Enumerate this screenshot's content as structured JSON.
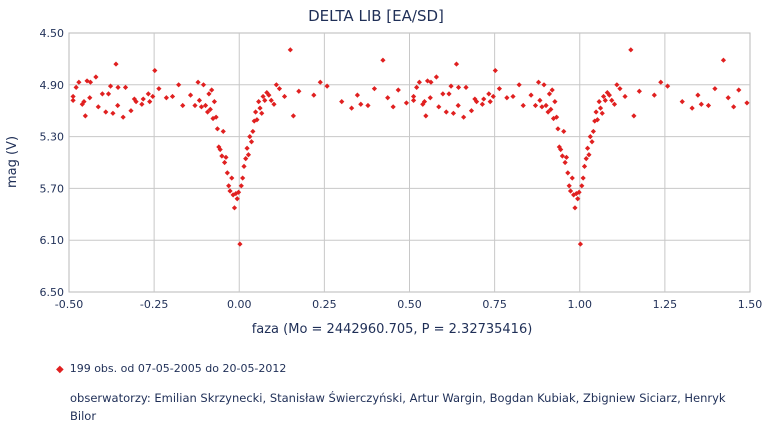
{
  "chart_data": {
    "type": "scatter",
    "title": "DELTA LIB [EA/SD]",
    "xlabel": "faza (Mo = 2442960.705, P = 2.32735416)",
    "ylabel": "mag (V)",
    "xlim": [
      -0.5,
      1.5
    ],
    "ylim": [
      4.5,
      6.5
    ],
    "y_inverted": true,
    "grid": true,
    "x_ticks": [
      "-0.50",
      "-0.25",
      "0.00",
      "0.25",
      "0.50",
      "0.75",
      "1.00",
      "1.25",
      "1.50"
    ],
    "y_ticks": [
      "4.50",
      "4.90",
      "5.30",
      "5.70",
      "6.10",
      "6.50"
    ],
    "marker_color": "#e02020",
    "series": [
      {
        "points": [
          [
            -0.488,
            4.99
          ],
          [
            -0.479,
            4.92
          ],
          [
            -0.461,
            5.05
          ],
          [
            -0.452,
            5.14
          ],
          [
            -0.447,
            4.87
          ],
          [
            -0.437,
            4.88
          ],
          [
            -0.414,
            5.07
          ],
          [
            -0.402,
            4.97
          ],
          [
            -0.384,
            4.97
          ],
          [
            -0.371,
            5.12
          ],
          [
            -0.362,
            4.74
          ],
          [
            -0.356,
            4.92
          ],
          [
            -0.341,
            5.15
          ],
          [
            -0.318,
            5.1
          ],
          [
            -0.303,
            5.03
          ],
          [
            -0.282,
            5.01
          ],
          [
            -0.267,
            4.97
          ],
          [
            -0.254,
            4.99
          ],
          [
            -0.236,
            4.93
          ],
          [
            -0.214,
            5.0
          ],
          [
            -0.196,
            4.99
          ],
          [
            -0.178,
            4.9
          ],
          [
            -0.166,
            5.06
          ],
          [
            -0.143,
            4.98
          ],
          [
            -0.13,
            5.06
          ],
          [
            -0.121,
            4.88
          ],
          [
            -0.117,
            5.02
          ],
          [
            -0.111,
            5.07
          ],
          [
            -0.105,
            4.9
          ],
          [
            -0.099,
            5.06
          ],
          [
            -0.093,
            5.11
          ],
          [
            -0.089,
            4.97
          ],
          [
            -0.085,
            5.09
          ],
          [
            -0.081,
            4.94
          ],
          [
            -0.077,
            5.16
          ],
          [
            -0.073,
            5.03
          ],
          [
            -0.068,
            5.15
          ],
          [
            -0.064,
            5.24
          ],
          [
            -0.06,
            5.38
          ],
          [
            -0.056,
            5.4
          ],
          [
            -0.051,
            5.45
          ],
          [
            -0.047,
            5.26
          ],
          [
            -0.043,
            5.5
          ],
          [
            -0.039,
            5.46
          ],
          [
            -0.035,
            5.58
          ],
          [
            -0.031,
            5.68
          ],
          [
            -0.027,
            5.72
          ],
          [
            -0.022,
            5.62
          ],
          [
            -0.018,
            5.75
          ],
          [
            -0.014,
            5.85
          ],
          [
            -0.01,
            5.74
          ],
          [
            -0.006,
            5.78
          ],
          [
            -0.002,
            5.73
          ],
          [
            0.002,
            6.13
          ],
          [
            0.006,
            5.68
          ],
          [
            0.01,
            5.62
          ],
          [
            0.014,
            5.53
          ],
          [
            0.019,
            5.47
          ],
          [
            0.023,
            5.39
          ],
          [
            0.027,
            5.44
          ],
          [
            0.031,
            5.3
          ],
          [
            0.036,
            5.34
          ],
          [
            0.04,
            5.26
          ],
          [
            0.044,
            5.18
          ],
          [
            0.048,
            5.11
          ],
          [
            0.052,
            5.17
          ],
          [
            0.057,
            5.03
          ],
          [
            0.061,
            5.08
          ],
          [
            0.066,
            5.12
          ],
          [
            0.07,
            4.99
          ],
          [
            0.075,
            5.02
          ],
          [
            0.081,
            4.96
          ],
          [
            0.087,
            4.98
          ],
          [
            0.094,
            5.02
          ],
          [
            0.102,
            5.05
          ],
          [
            0.109,
            4.9
          ],
          [
            0.118,
            4.93
          ],
          [
            0.133,
            4.99
          ],
          [
            0.15,
            4.63
          ],
          [
            0.159,
            5.14
          ],
          [
            0.175,
            4.95
          ],
          [
            0.219,
            4.98
          ],
          [
            0.238,
            4.88
          ],
          [
            0.258,
            4.91
          ],
          [
            0.301,
            5.03
          ],
          [
            0.33,
            5.08
          ],
          [
            0.347,
            4.98
          ],
          [
            0.357,
            5.05
          ],
          [
            0.378,
            5.06
          ],
          [
            0.397,
            4.93
          ],
          [
            0.422,
            4.71
          ],
          [
            0.436,
            5.0
          ],
          [
            0.452,
            5.07
          ],
          [
            0.467,
            4.94
          ],
          [
            0.491,
            5.04
          ],
          [
            0.512,
            5.02
          ],
          [
            0.529,
            4.88
          ],
          [
            0.544,
            5.03
          ],
          [
            0.561,
            5.0
          ],
          [
            0.579,
            4.84
          ],
          [
            0.608,
            5.11
          ],
          [
            0.622,
            4.91
          ],
          [
            0.643,
            5.06
          ],
          [
            0.666,
            4.92
          ],
          [
            0.692,
            5.01
          ],
          [
            0.714,
            5.05
          ],
          [
            0.737,
            5.03
          ],
          [
            0.752,
            4.79
          ]
        ]
      }
    ]
  },
  "legend": {
    "marker": "◆",
    "text": "199 obs. od 07-05-2005 do 20-05-2012"
  },
  "observers": "obserwatorzy: Emilian Skrzynecki, Stanisław Świerczyński, Artur Wargin, Bogdan Kubiak, Zbigniew Siciarz, Henryk Bilor"
}
